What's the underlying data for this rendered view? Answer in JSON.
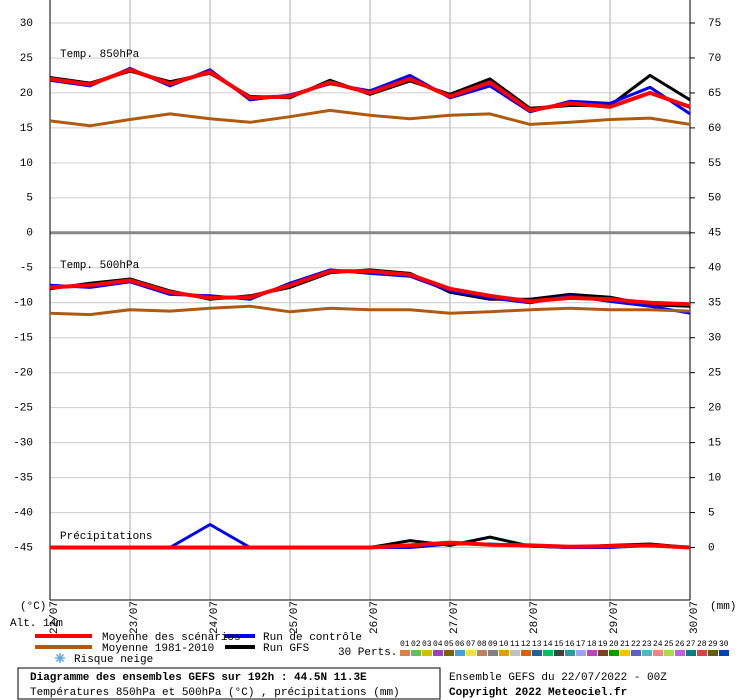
{
  "chart_data": [
    {
      "type": "line",
      "title": "Temp. 850hPa",
      "ylabel": "(°C)",
      "x": [
        0,
        12,
        24,
        36,
        48,
        60,
        72,
        84,
        96,
        108,
        120,
        132,
        144,
        156,
        168,
        180,
        192
      ],
      "xlim": [
        0,
        192
      ],
      "xticks": [
        {
          "value": 0,
          "label": "22/07"
        },
        {
          "value": 24,
          "label": "23/07"
        },
        {
          "value": 48,
          "label": "24/07"
        },
        {
          "value": 72,
          "label": "25/07"
        },
        {
          "value": 96,
          "label": "26/07"
        },
        {
          "value": 120,
          "label": "27/07"
        },
        {
          "value": 144,
          "label": "28/07"
        },
        {
          "value": 168,
          "label": "29/07"
        },
        {
          "value": 192,
          "label": "30/07"
        }
      ],
      "ylim": [
        -52.5,
        32
      ],
      "yticks": [
        30,
        25,
        20,
        15,
        10,
        5,
        0,
        -5,
        -10,
        -15,
        -20,
        -25,
        -30,
        -35,
        -40,
        -45
      ],
      "grid": true,
      "series": [
        {
          "name": "Moyenne des scénarios",
          "color": "#ff0000",
          "values": [
            22,
            21.2,
            23.3,
            21.3,
            23.0,
            19.3,
            19.5,
            21.5,
            20.0,
            22.0,
            19.5,
            21.5,
            17.5,
            18.5,
            18.0,
            20.0,
            18.0
          ]
        },
        {
          "name": "Moyenne 1981-2010",
          "color": "#b05a10",
          "values": [
            16,
            15.3,
            16.2,
            17,
            16.3,
            15.8,
            16.6,
            17.5,
            16.8,
            16.3,
            16.8,
            17,
            15.5,
            15.8,
            16.2,
            16.4,
            15.5
          ]
        },
        {
          "name": "Run de contrôle",
          "color": "#0000ff",
          "values": [
            21.8,
            21,
            23.5,
            21,
            23.3,
            19,
            19.7,
            21.3,
            20.3,
            22.5,
            19.3,
            21,
            17.3,
            18.8,
            18.5,
            20.8,
            17
          ]
        },
        {
          "name": "Run GFS",
          "color": "#000000",
          "values": [
            22.2,
            21.4,
            23.1,
            21.6,
            22.8,
            19.5,
            19.3,
            21.8,
            19.8,
            21.7,
            19.8,
            22,
            17.8,
            18.2,
            18.2,
            22.5,
            19
          ]
        }
      ]
    },
    {
      "type": "line",
      "title": "Temp. 500hPa",
      "x": [
        0,
        12,
        24,
        36,
        48,
        60,
        72,
        84,
        96,
        108,
        120,
        132,
        144,
        156,
        168,
        180,
        192
      ],
      "xlim": [
        0,
        192
      ],
      "ylim": [
        -52.5,
        32
      ],
      "series": [
        {
          "color": "#ff0000",
          "values": [
            -7.8,
            -7.5,
            -6.8,
            -8.5,
            -9.3,
            -9.2,
            -7.5,
            -5.5,
            -5.5,
            -6,
            -8,
            -9,
            -9.8,
            -9.3,
            -9.5,
            -10,
            -10.2
          ]
        },
        {
          "color": "#b05a10",
          "values": [
            -11.5,
            -11.7,
            -11,
            -11.2,
            -10.8,
            -10.5,
            -11.3,
            -10.8,
            -11,
            -11,
            -11.5,
            -11.3,
            -11,
            -10.8,
            -11,
            -11,
            -11.2
          ]
        },
        {
          "color": "#0000ff",
          "values": [
            -7.5,
            -7.8,
            -7,
            -8.8,
            -9,
            -9.5,
            -7.2,
            -5.3,
            -5.8,
            -6.2,
            -8.3,
            -9.3,
            -10,
            -9,
            -9.8,
            -10.5,
            -11.5
          ]
        },
        {
          "color": "#000000",
          "values": [
            -8,
            -7.2,
            -6.6,
            -8.3,
            -9.5,
            -9,
            -7.8,
            -5.7,
            -5.3,
            -5.8,
            -8.5,
            -9.5,
            -9.5,
            -8.8,
            -9.2,
            -10.3,
            -10.5
          ]
        }
      ]
    },
    {
      "type": "line",
      "title": "Précipitations",
      "ylabel": "(mm)",
      "x": [
        0,
        12,
        24,
        36,
        48,
        60,
        72,
        84,
        96,
        108,
        120,
        132,
        144,
        156,
        168,
        180,
        192
      ],
      "xlim": [
        0,
        192
      ],
      "ylim": [
        -7.5,
        77
      ],
      "yticks": [
        75,
        70,
        65,
        60,
        55,
        50,
        45,
        40,
        35,
        30,
        25,
        20,
        15,
        10,
        5,
        0
      ],
      "series": [
        {
          "color": "#ff0000",
          "values": [
            0,
            0,
            0,
            0,
            0,
            0,
            0,
            0,
            0,
            0.3,
            0.7,
            0.4,
            0.3,
            0.1,
            0.2,
            0.3,
            0
          ]
        },
        {
          "color": "#0000ff",
          "values": [
            0,
            0,
            0,
            0,
            3.3,
            0,
            0,
            0,
            0,
            0,
            0.5,
            0.5,
            0.2,
            0,
            0,
            0.3,
            0
          ]
        },
        {
          "color": "#000000",
          "values": [
            0,
            0,
            0,
            0,
            0,
            0,
            0,
            0,
            0,
            1,
            0.3,
            1.5,
            0.2,
            0,
            0.3,
            0.5,
            0
          ]
        }
      ]
    }
  ],
  "altitude": "Alt. 14m",
  "snow_legend": "Risque neige",
  "perturbations": {
    "label": "30 Perts.",
    "members": [
      {
        "label": "01",
        "color": "#e08040"
      },
      {
        "label": "02",
        "color": "#60c060"
      },
      {
        "label": "03",
        "color": "#d0c000"
      },
      {
        "label": "04",
        "color": "#a040c0"
      },
      {
        "label": "05",
        "color": "#806000"
      },
      {
        "label": "06",
        "color": "#40a0e0"
      },
      {
        "label": "07",
        "color": "#f0e040"
      },
      {
        "label": "08",
        "color": "#c08060"
      },
      {
        "label": "09",
        "color": "#808080"
      },
      {
        "label": "10",
        "color": "#e0a000"
      },
      {
        "label": "11",
        "color": "#c0c0c0"
      },
      {
        "label": "12",
        "color": "#e06000"
      },
      {
        "label": "13",
        "color": "#2060a0"
      },
      {
        "label": "14",
        "color": "#00c060"
      },
      {
        "label": "15",
        "color": "#404040"
      },
      {
        "label": "16",
        "color": "#20a0a0"
      },
      {
        "label": "17",
        "color": "#a0a0ff"
      },
      {
        "label": "18",
        "color": "#c040c0"
      },
      {
        "label": "19",
        "color": "#804020"
      },
      {
        "label": "20",
        "color": "#00a000"
      },
      {
        "label": "21",
        "color": "#ffc000"
      },
      {
        "label": "22",
        "color": "#6060c0"
      },
      {
        "label": "23",
        "color": "#40c0c0"
      },
      {
        "label": "24",
        "color": "#ff8080"
      },
      {
        "label": "25",
        "color": "#a0e040"
      },
      {
        "label": "26",
        "color": "#c060e0"
      },
      {
        "label": "27",
        "color": "#008080"
      },
      {
        "label": "28",
        "color": "#e04040"
      },
      {
        "label": "29",
        "color": "#606000"
      },
      {
        "label": "30",
        "color": "#0040c0"
      }
    ]
  },
  "footer": {
    "title": "Diagramme des ensembles GEFS sur 192h : 44.5N 11.3E",
    "subtitle": "Températures 850hPa et 500hPa (°C) , précipitations (mm)",
    "run": "Ensemble GEFS du 22/07/2022 - 00Z",
    "copyright": "Copyright 2022 Meteociel.fr"
  }
}
